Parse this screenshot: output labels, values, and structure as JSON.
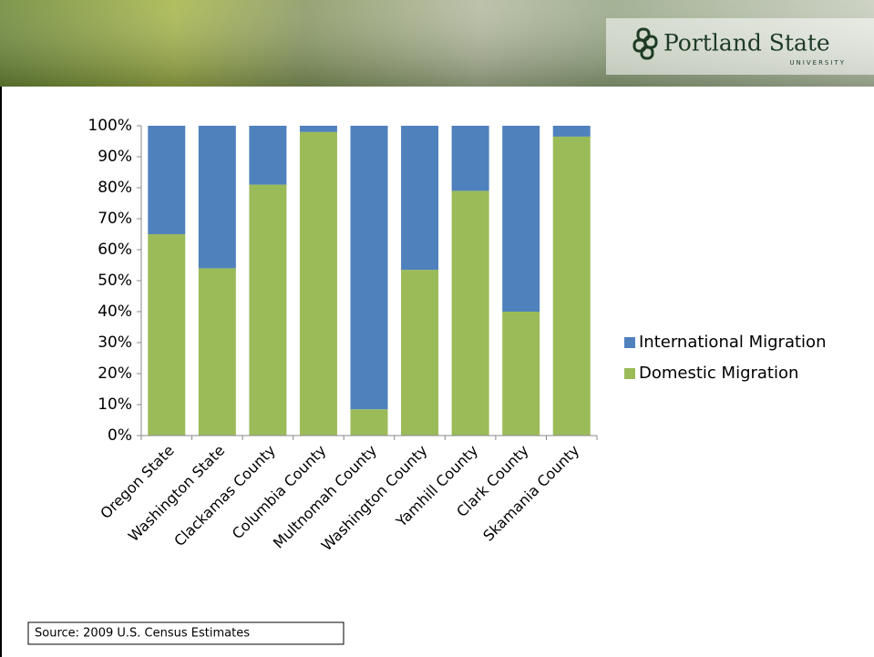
{
  "header": {
    "logo_name": "Portland State",
    "logo_sub": "UNIVERSITY"
  },
  "chart_data": {
    "type": "stacked_bar",
    "categories": [
      "Oregon State",
      "Washington State",
      "Clackamas County",
      "Columbia County",
      "Multnomah County",
      "Washington County",
      "Yamhill County",
      "Clark County",
      "Skamania County"
    ],
    "series": [
      {
        "name": "Domestic Migration",
        "color": "#9bbb59",
        "values": [
          65,
          54,
          81,
          98,
          8.5,
          53.5,
          79,
          40,
          96.5
        ]
      },
      {
        "name": "International Migration",
        "color": "#4f81bd",
        "values": [
          35,
          46,
          19,
          2,
          91.5,
          46.5,
          21,
          60,
          3.5
        ]
      }
    ],
    "ylim": [
      0,
      100
    ],
    "yticks": [
      {
        "value": 0,
        "label": "0%"
      },
      {
        "value": 10,
        "label": "10%"
      },
      {
        "value": 20,
        "label": "20%"
      },
      {
        "value": 30,
        "label": "30%"
      },
      {
        "value": 40,
        "label": "40%"
      },
      {
        "value": 50,
        "label": "50%"
      },
      {
        "value": 60,
        "label": "60%"
      },
      {
        "value": 70,
        "label": "70%"
      },
      {
        "value": 80,
        "label": "80%"
      },
      {
        "value": 90,
        "label": "90%"
      },
      {
        "value": 100,
        "label": "100%"
      }
    ],
    "grid": false,
    "legend": "right"
  },
  "source": "Source: 2009 U.S. Census Estimates"
}
